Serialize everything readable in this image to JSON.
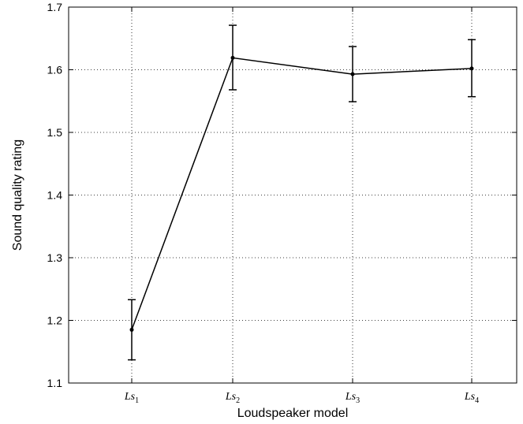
{
  "chart_data": {
    "type": "line",
    "title": "",
    "xlabel": "Loudspeaker model",
    "ylabel": "Sound quality rating",
    "categories": [
      {
        "base": "Ls",
        "sub": "1"
      },
      {
        "base": "Ls",
        "sub": "2"
      },
      {
        "base": "Ls",
        "sub": "3"
      },
      {
        "base": "Ls",
        "sub": "4"
      }
    ],
    "values": [
      1.185,
      1.619,
      1.593,
      1.602
    ],
    "error_low": [
      1.137,
      1.568,
      1.549,
      1.557
    ],
    "error_high": [
      1.233,
      1.671,
      1.637,
      1.648
    ],
    "ylim": [
      1.1,
      1.7
    ],
    "yticks": [
      "1.1",
      "1.2",
      "1.3",
      "1.4",
      "1.5",
      "1.6",
      "1.7"
    ],
    "grid": true,
    "legend": "none",
    "line_color": "#000000"
  }
}
